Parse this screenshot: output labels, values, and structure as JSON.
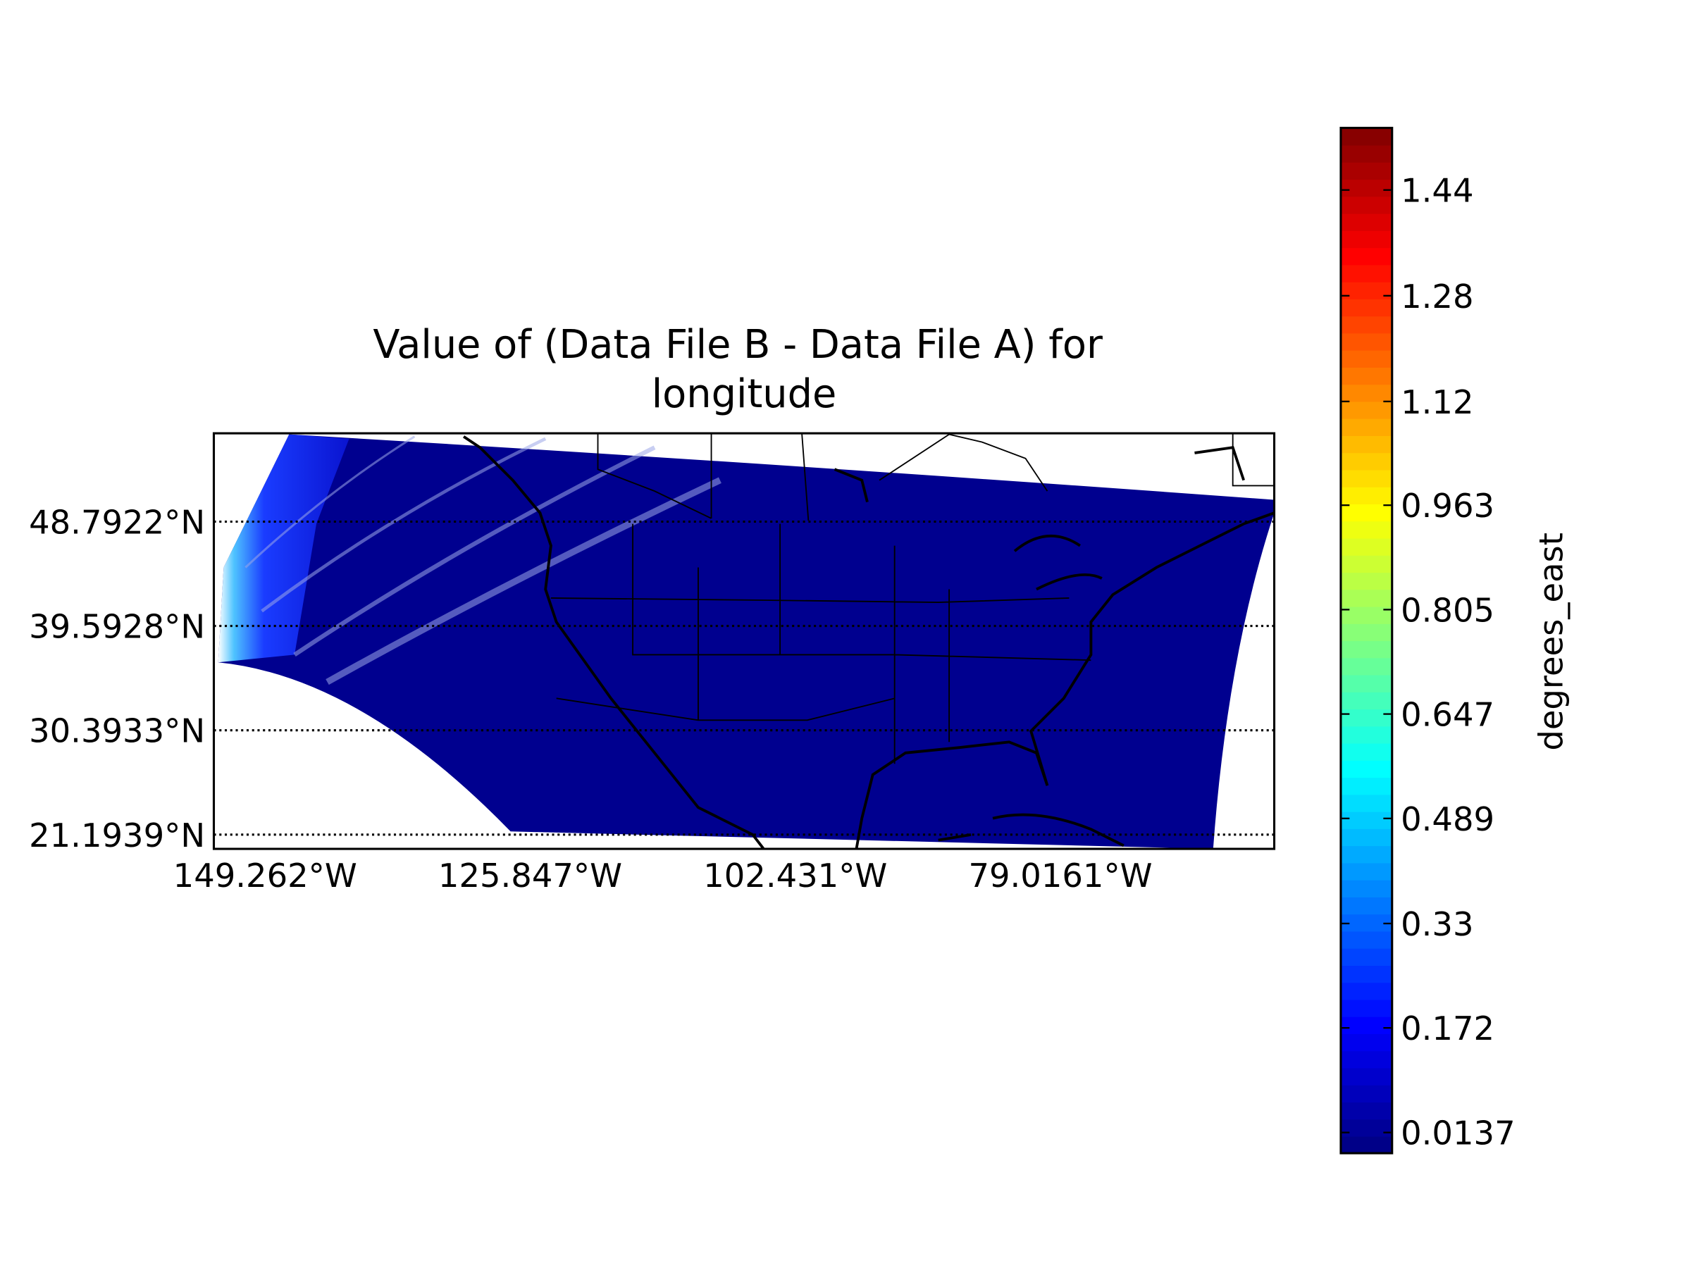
{
  "map": {
    "title": [
      "Value of (Data File B - Data File A) for",
      "longitude"
    ],
    "lat_range": [
      19.94,
      56.58
    ],
    "lat_ticks": [
      {
        "value": 48.7922,
        "label": "48.7922°N"
      },
      {
        "value": 39.5928,
        "label": "39.5928°N"
      },
      {
        "value": 30.3933,
        "label": "30.3933°N"
      },
      {
        "value": 21.1939,
        "label": "21.1939°N"
      }
    ],
    "lon_range": [
      -153.79,
      -60.13
    ],
    "lon_ticks": [
      {
        "value": -149.262,
        "label": "149.262°W"
      },
      {
        "value": -125.847,
        "label": "125.847°W"
      },
      {
        "value": -102.431,
        "label": "102.431°W"
      },
      {
        "value": -79.0161,
        "label": "79.0161°W"
      }
    ]
  },
  "colorbar": {
    "label": "degrees_east",
    "range": [
      -0.0176,
      1.534
    ],
    "ticks": [
      0.0137,
      0.172,
      0.33,
      0.489,
      0.647,
      0.805,
      0.963,
      1.12,
      1.28,
      1.44
    ]
  }
}
